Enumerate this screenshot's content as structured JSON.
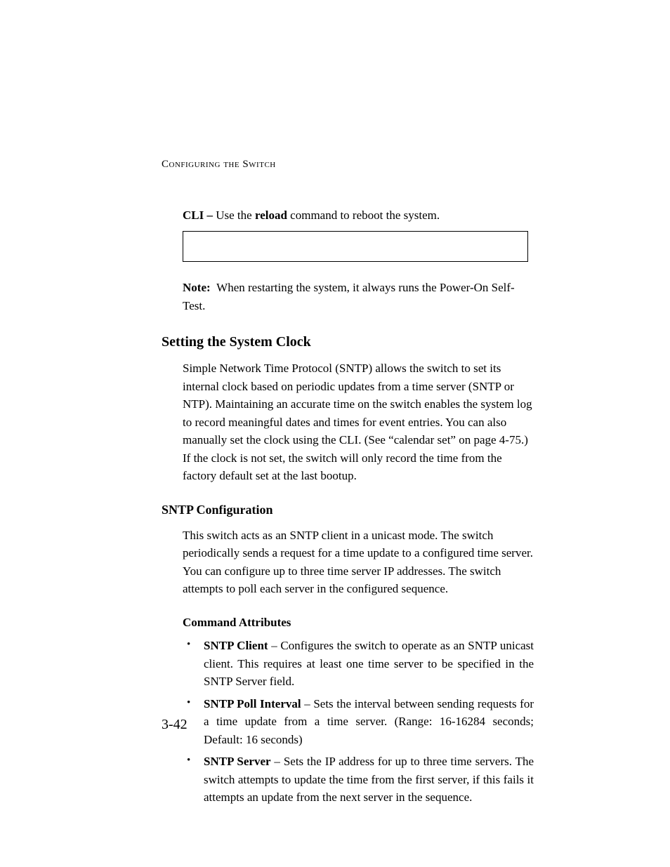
{
  "running_head": "Configuring the Switch",
  "cli": {
    "prefix": "CLI – ",
    "pre_text": "Use the ",
    "command": "reload",
    "post_text": " command to reboot the system."
  },
  "note": {
    "label": "Note:",
    "text": "When restarting the system, it always runs the Power-On Self-Test."
  },
  "section": {
    "title": "Setting the System Clock",
    "body": "Simple Network Time Protocol (SNTP) allows the switch to set its internal clock based on periodic updates from a time server (SNTP or NTP). Maintaining an accurate time on the switch enables the system log to record meaningful dates and times for event entries. You can also manually set the clock using the CLI. (See “calendar set” on page 4-75.) If the clock is not set, the switch will only record the time from the factory default set at the last bootup."
  },
  "subsection": {
    "title": "SNTP Configuration",
    "body": "This switch acts as an SNTP client in a unicast mode. The switch periodically sends a request for a time update to a configured time server. You can configure up to three time server IP addresses. The switch attempts to poll each server in the configured sequence."
  },
  "command_attributes": {
    "heading": "Command Attributes",
    "items": [
      {
        "term": "SNTP Client",
        "desc": " – Configures the switch to operate as an SNTP unicast client. This requires at least one time server to be specified in the SNTP Server field."
      },
      {
        "term": "SNTP Poll Interval",
        "desc": " – Sets the interval between sending requests for a time update from a time server. (Range: 16-16284 seconds; Default: 16 seconds)"
      },
      {
        "term": "SNTP Server",
        "desc": " – Sets the IP address for up to three time servers. The switch attempts to update the time from the first server, if this fails it attempts an update from the next server in the sequence."
      }
    ]
  },
  "page_number": "3-42"
}
